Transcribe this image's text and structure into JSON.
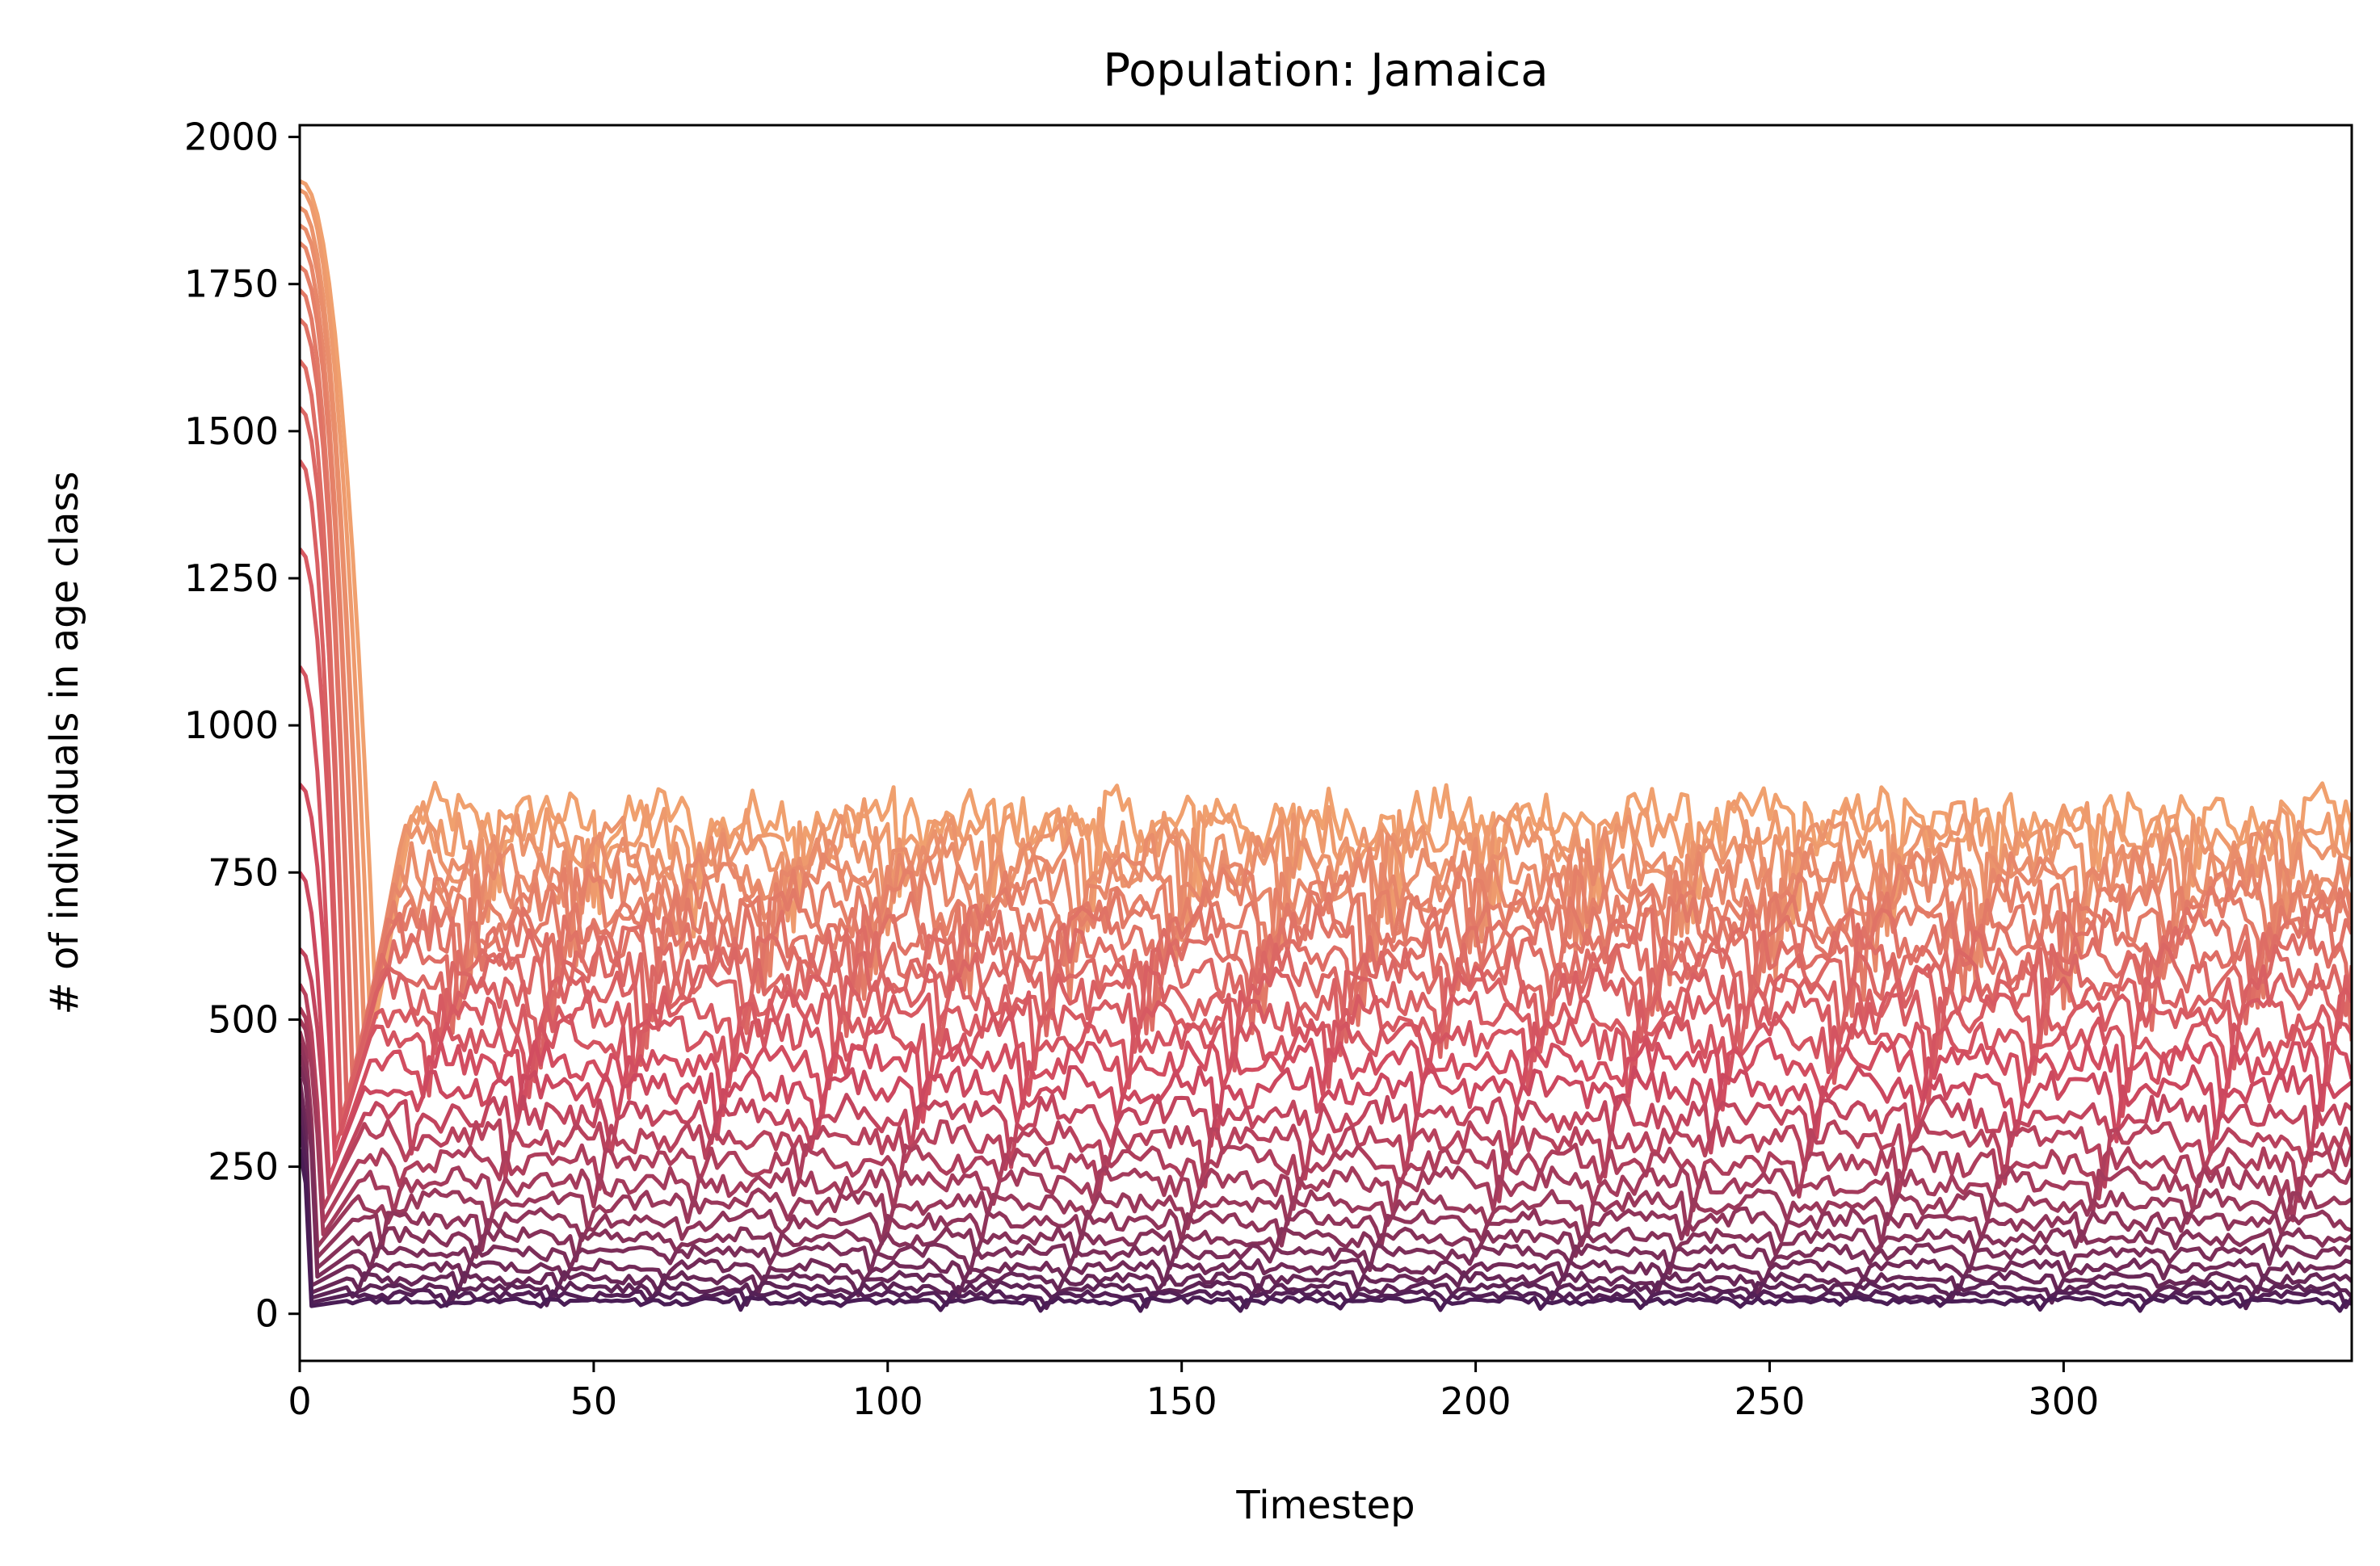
{
  "chart_data": {
    "type": "line",
    "title": "Population: Jamaica",
    "xlabel": "Timestep",
    "ylabel": "# of individuals in age class",
    "xlim": [
      0,
      349
    ],
    "ylim": [
      -80,
      2020
    ],
    "xticks": [
      0,
      50,
      100,
      150,
      200,
      250,
      300
    ],
    "yticks": [
      0,
      250,
      500,
      750,
      1000,
      1250,
      1500,
      1750,
      2000
    ],
    "grid": false,
    "legend": "none",
    "colormap": "flare",
    "colors": {
      "start": "#f0a06e",
      "mid": "#d14a5f",
      "end": "#4a1d55"
    },
    "series": [
      {
        "initial": 1925,
        "drop": 13,
        "steady": 840,
        "amplitude": 45
      },
      {
        "initial": 1910,
        "drop": 12,
        "steady": 815,
        "amplitude": 45
      },
      {
        "initial": 1880,
        "drop": 11,
        "steady": 790,
        "amplitude": 45
      },
      {
        "initial": 1850,
        "drop": 11,
        "steady": 760,
        "amplitude": 45
      },
      {
        "initial": 1820,
        "drop": 10,
        "steady": 730,
        "amplitude": 45
      },
      {
        "initial": 1780,
        "drop": 10,
        "steady": 700,
        "amplitude": 45
      },
      {
        "initial": 1740,
        "drop": 9,
        "steady": 670,
        "amplitude": 42
      },
      {
        "initial": 1690,
        "drop": 9,
        "steady": 640,
        "amplitude": 40
      },
      {
        "initial": 1620,
        "drop": 8,
        "steady": 610,
        "amplitude": 38
      },
      {
        "initial": 1540,
        "drop": 8,
        "steady": 580,
        "amplitude": 36
      },
      {
        "initial": 1450,
        "drop": 7,
        "steady": 545,
        "amplitude": 34
      },
      {
        "initial": 1300,
        "drop": 7,
        "steady": 510,
        "amplitude": 32
      },
      {
        "initial": 1100,
        "drop": 6,
        "steady": 470,
        "amplitude": 30
      },
      {
        "initial": 900,
        "drop": 6,
        "steady": 430,
        "amplitude": 28
      },
      {
        "initial": 750,
        "drop": 5,
        "steady": 385,
        "amplitude": 26
      },
      {
        "initial": 620,
        "drop": 5,
        "steady": 340,
        "amplitude": 24
      },
      {
        "initial": 560,
        "drop": 4,
        "steady": 300,
        "amplitude": 22
      },
      {
        "initial": 520,
        "drop": 4,
        "steady": 260,
        "amplitude": 20
      },
      {
        "initial": 500,
        "drop": 4,
        "steady": 225,
        "amplitude": 18
      },
      {
        "initial": 480,
        "drop": 3,
        "steady": 190,
        "amplitude": 16
      },
      {
        "initial": 460,
        "drop": 3,
        "steady": 160,
        "amplitude": 14
      },
      {
        "initial": 440,
        "drop": 3,
        "steady": 130,
        "amplitude": 12
      },
      {
        "initial": 420,
        "drop": 3,
        "steady": 105,
        "amplitude": 10
      },
      {
        "initial": 400,
        "drop": 2,
        "steady": 80,
        "amplitude": 9
      },
      {
        "initial": 380,
        "drop": 2,
        "steady": 60,
        "amplitude": 8
      },
      {
        "initial": 350,
        "drop": 2,
        "steady": 45,
        "amplitude": 7
      },
      {
        "initial": 320,
        "drop": 2,
        "steady": 32,
        "amplitude": 6
      },
      {
        "initial": 280,
        "drop": 2,
        "steady": 22,
        "amplitude": 5
      }
    ]
  }
}
